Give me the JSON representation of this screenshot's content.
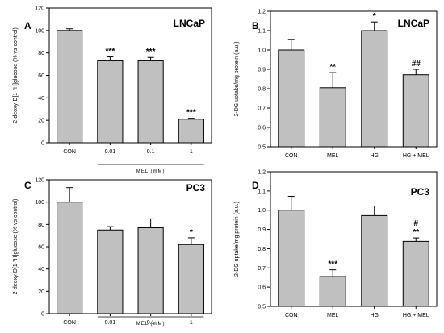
{
  "chart_data": [
    {
      "panel": "A",
      "cell_line": "LNCaP",
      "type": "bar",
      "ylabel": "2-deoxy-D[1-³H]glucose (% vs control)",
      "xlabel": "MEL (mM)",
      "ylim": [
        0,
        120
      ],
      "yticks": [
        "0",
        "20",
        "40",
        "60",
        "80",
        "100",
        "120"
      ],
      "categories": [
        "CON",
        "0.01",
        "0.1",
        "1"
      ],
      "values": [
        100,
        73,
        73,
        21
      ],
      "errors": [
        1.5,
        3.5,
        3,
        0.8
      ],
      "annotations": [
        "",
        "***",
        "***",
        "***"
      ],
      "bar_color": "#c0c0c0"
    },
    {
      "panel": "B",
      "cell_line": "LNCaP",
      "type": "bar",
      "ylabel": "2-DG uptake/mg protein (a.u.)",
      "xlabel": "",
      "ylim": [
        0.5,
        1.2
      ],
      "yticks": [
        "0,5",
        "0,6",
        "0,7",
        "0,8",
        "0,9",
        "1,0",
        "1,1",
        "1,2"
      ],
      "categories": [
        "CON",
        "MEL",
        "HG",
        "HG + MEL"
      ],
      "values": [
        1.0,
        0.805,
        1.1,
        0.872
      ],
      "errors": [
        0.055,
        0.078,
        0.045,
        0.028
      ],
      "annotations": [
        "",
        "**",
        "*",
        "##"
      ],
      "bar_color": "#c0c0c0"
    },
    {
      "panel": "C",
      "cell_line": "PC3",
      "type": "bar",
      "ylabel": "2-deoxy-D[1-³H]glucose (% vs control)",
      "xlabel": "MEL (mM)",
      "ylim": [
        0,
        120
      ],
      "yticks": [
        "0",
        "20",
        "40",
        "60",
        "80",
        "100",
        "120"
      ],
      "categories": [
        "CON",
        "0.01",
        "0.1",
        "1"
      ],
      "values": [
        100,
        75,
        77,
        62
      ],
      "errors": [
        13,
        3,
        8,
        6
      ],
      "annotations": [
        "",
        "",
        "",
        "*"
      ],
      "bar_color": "#c0c0c0"
    },
    {
      "panel": "D",
      "cell_line": "PC3",
      "type": "bar",
      "ylabel": "2-DG uptake/mg protein (a.u.)",
      "xlabel": "",
      "ylim": [
        0.5,
        1.2
      ],
      "yticks": [
        "0,5",
        "0,6",
        "0,7",
        "0,8",
        "0,9",
        "1,0",
        "1,1",
        "1,2"
      ],
      "categories": [
        "CON",
        "MEL",
        "HG",
        "HG + MEL"
      ],
      "values": [
        1.0,
        0.655,
        0.972,
        0.838
      ],
      "errors": [
        0.072,
        0.035,
        0.05,
        0.018
      ],
      "annotations": [
        "",
        "***",
        "",
        "#\n**"
      ],
      "bar_color": "#c0c0c0"
    }
  ]
}
